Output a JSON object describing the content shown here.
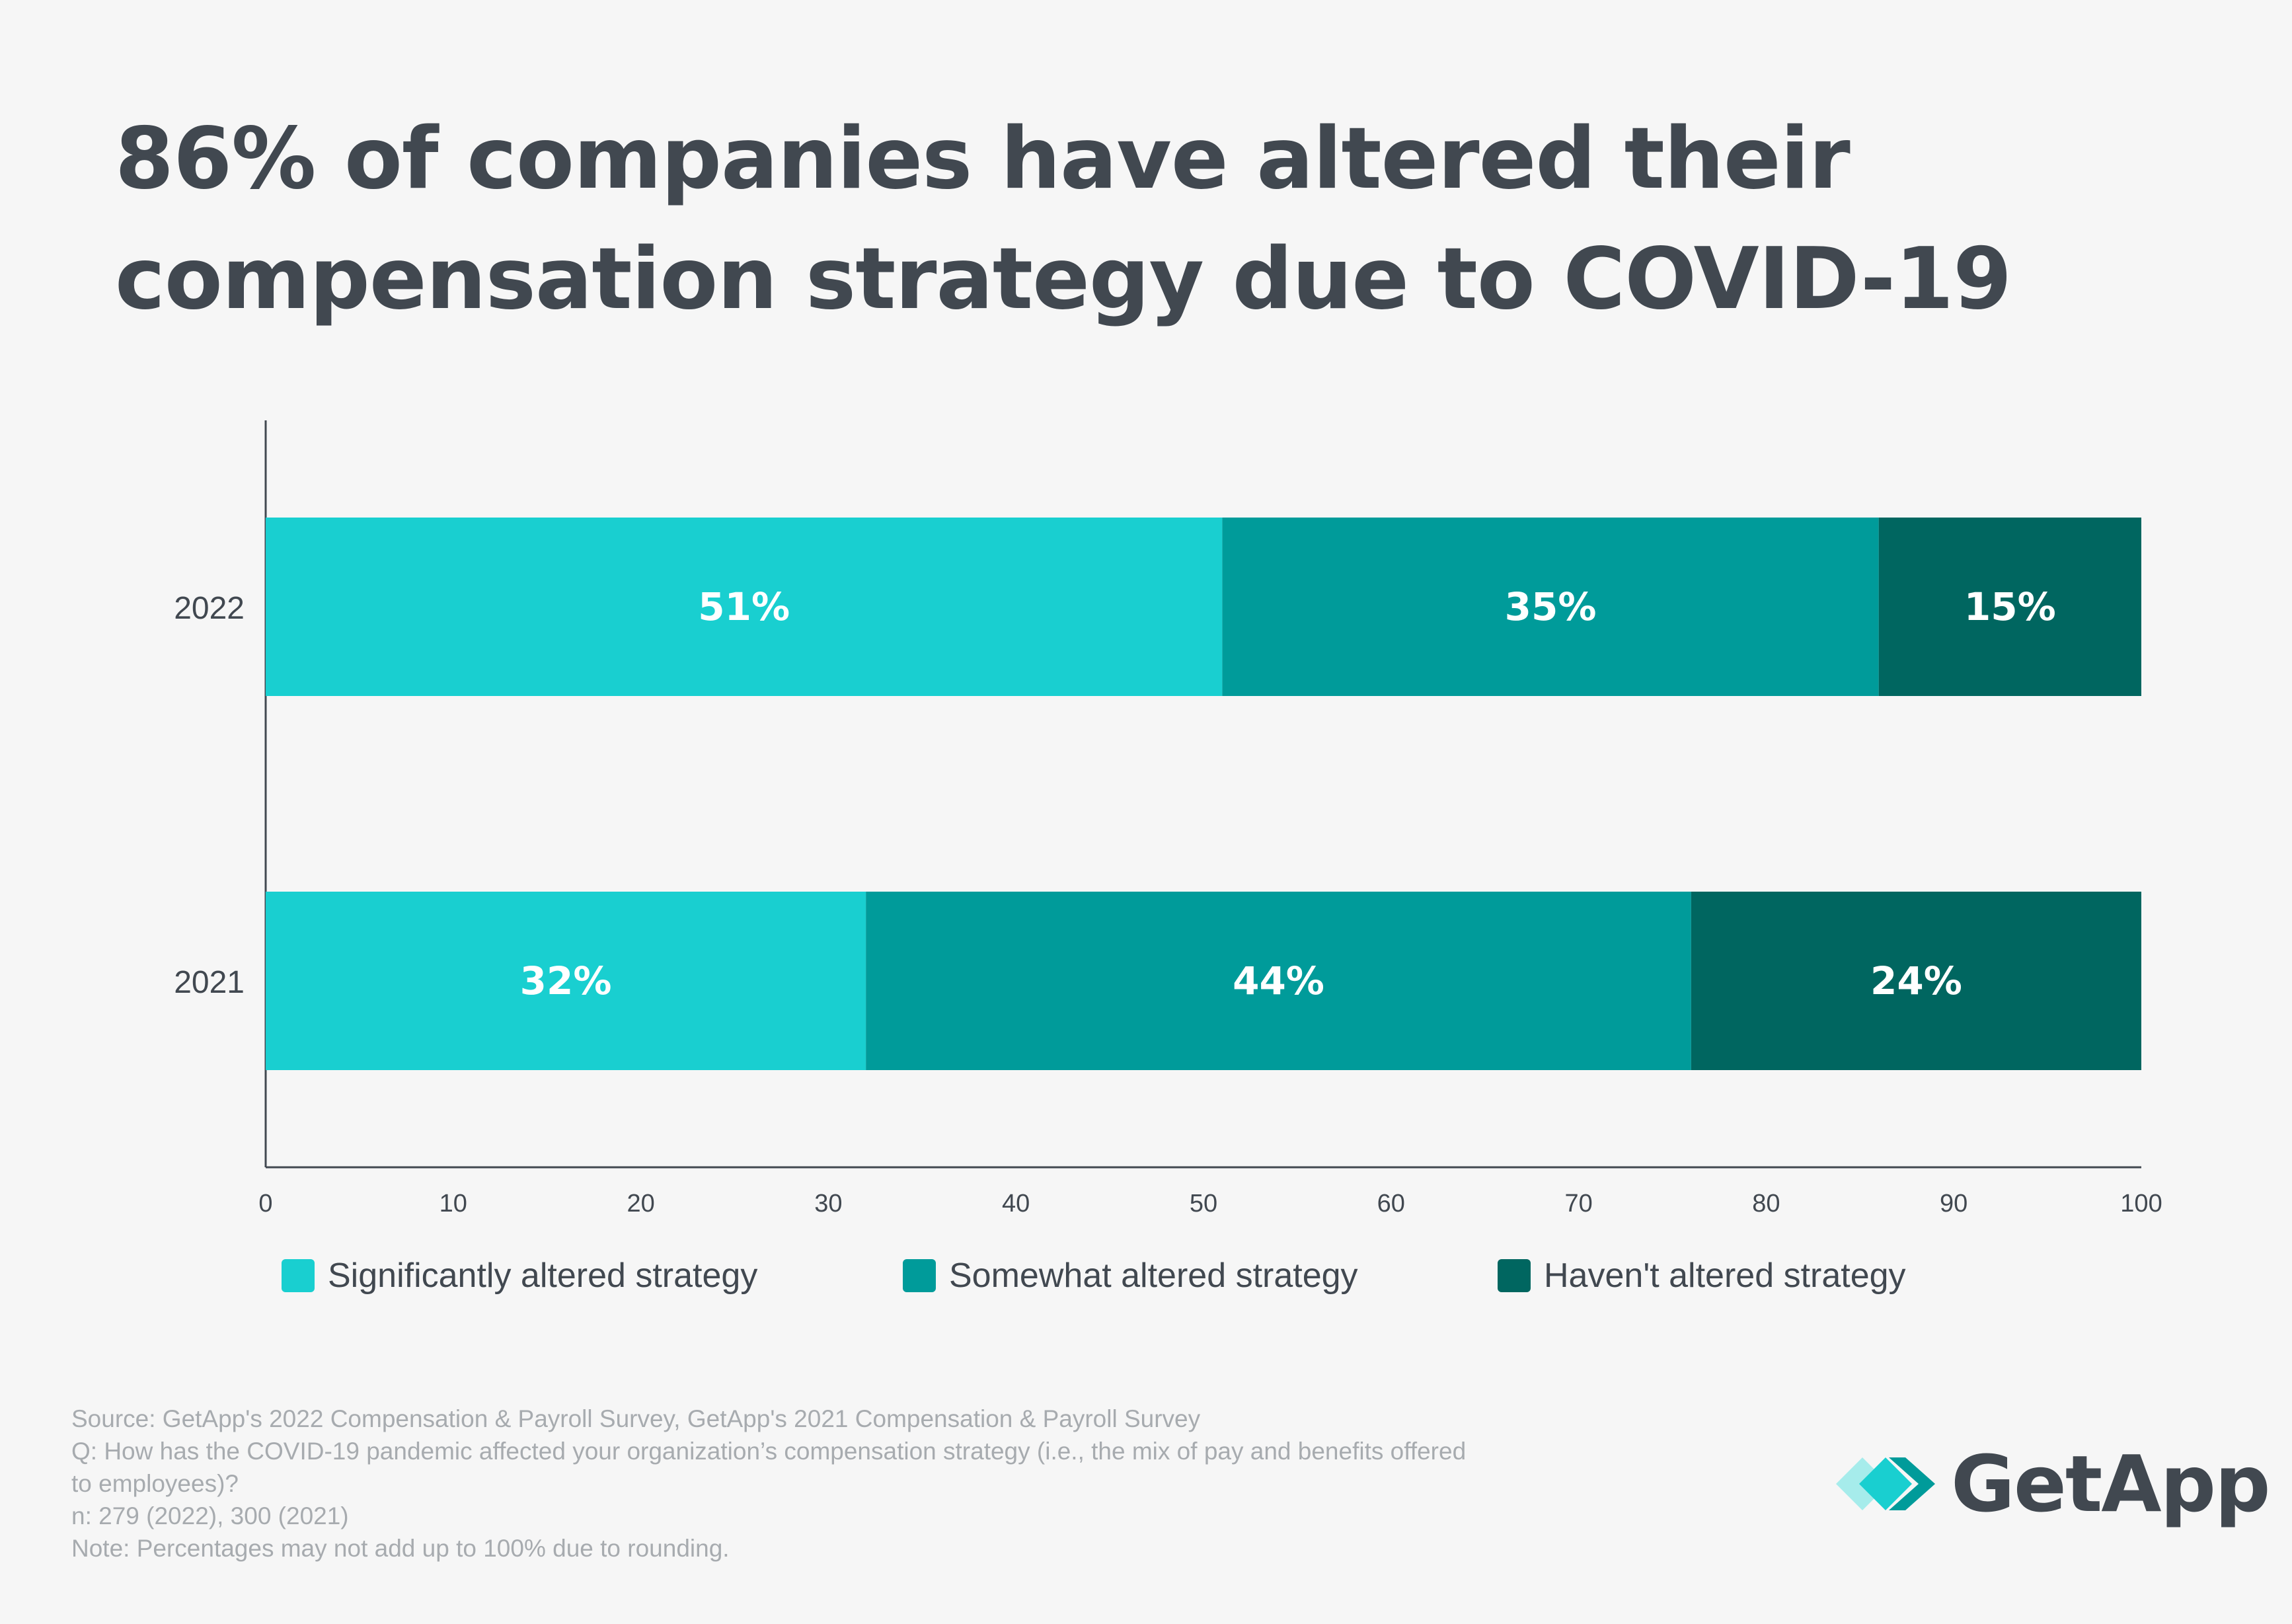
{
  "title_lines": [
    "86% of companies have altered their",
    "compensation strategy due to COVID-19"
  ],
  "chart_data": {
    "type": "bar",
    "orientation": "horizontal",
    "stacked": true,
    "categories": [
      "2022",
      "2021"
    ],
    "series": [
      {
        "name": "Significantly altered strategy",
        "color": "#19cfd0",
        "values": [
          51,
          32
        ],
        "labels": [
          "51%",
          "32%"
        ]
      },
      {
        "name": "Somewhat altered strategy",
        "color": "#009b9a",
        "values": [
          35,
          44
        ],
        "labels": [
          "35%",
          "44%"
        ]
      },
      {
        "name": "Haven't altered strategy",
        "color": "#006660",
        "values": [
          15,
          24
        ],
        "labels": [
          "15%",
          "24%"
        ]
      }
    ],
    "xlim": [
      0,
      100
    ],
    "xticks": [
      0,
      10,
      20,
      30,
      40,
      50,
      60,
      70,
      80,
      90,
      100
    ],
    "xlabel": "",
    "ylabel": "",
    "legend": "bottom",
    "grid": false
  },
  "footer": {
    "source": "Source: GetApp's 2022 Compensation & Payroll Survey, GetApp's 2021 Compensation & Payroll Survey",
    "question_line1": "Q: How has the COVID-19 pandemic affected your organization’s compensation strategy (i.e., the mix of pay and benefits offered",
    "question_line2": "to employees)?",
    "n": "n: 279 (2022), 300 (2021)",
    "note": "Note: Percentages may not add up to 100% due to rounding."
  },
  "logo": {
    "text": "GetApp",
    "colors": {
      "light": "#a6eceb",
      "mid": "#19cfd0",
      "dark": "#009b9a"
    }
  }
}
